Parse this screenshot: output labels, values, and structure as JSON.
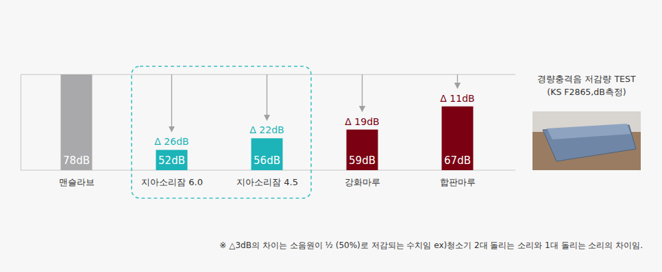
{
  "chart_data": {
    "type": "bar",
    "categories": [
      "맨슬라브",
      "지아소리잠 6.0",
      "지아소리잠 4.5",
      "강화마루",
      "합판마루"
    ],
    "values": [
      78,
      52,
      56,
      59,
      67
    ],
    "value_labels": [
      "78dB",
      "52dB",
      "56dB",
      "59dB",
      "67dB"
    ],
    "data_labels": true,
    "colors": [
      "#a9a9ab",
      "#1cb4b8",
      "#1cb4b8",
      "#7a0012",
      "#7a0012"
    ],
    "reductions": [
      null,
      26,
      22,
      19,
      11
    ],
    "reduction_labels": [
      null,
      "Δ 26dB",
      "Δ 22dB",
      "Δ 19dB",
      "Δ 11dB"
    ],
    "ylim": [
      45,
      78
    ],
    "yticks": [
      45,
      78
    ],
    "grid": true,
    "tick_labels": false,
    "annotations": [
      "경량충격음 저감량 TEST",
      "(KS F2865,dB측정)",
      "※ △3dB의 차이는 소음원이 ½ (50%)로 저감되는 수치임 ex)청소기 2대 돌리는 소리와 1대 돌리는 소리의 차이임."
    ]
  }
}
